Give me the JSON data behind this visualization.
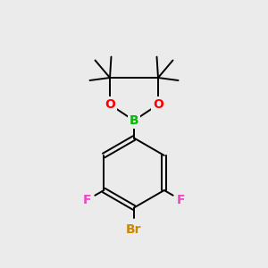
{
  "background_color": "#ebebeb",
  "bond_color": "#000000",
  "boron_color": "#00bb00",
  "oxygen_color": "#ff0000",
  "fluorine_color": "#ee44cc",
  "bromine_color": "#cc8800",
  "label_B": "B",
  "label_O": "O",
  "label_F": "F",
  "label_Br": "Br",
  "figsize": [
    3.0,
    3.0
  ],
  "dpi": 100
}
